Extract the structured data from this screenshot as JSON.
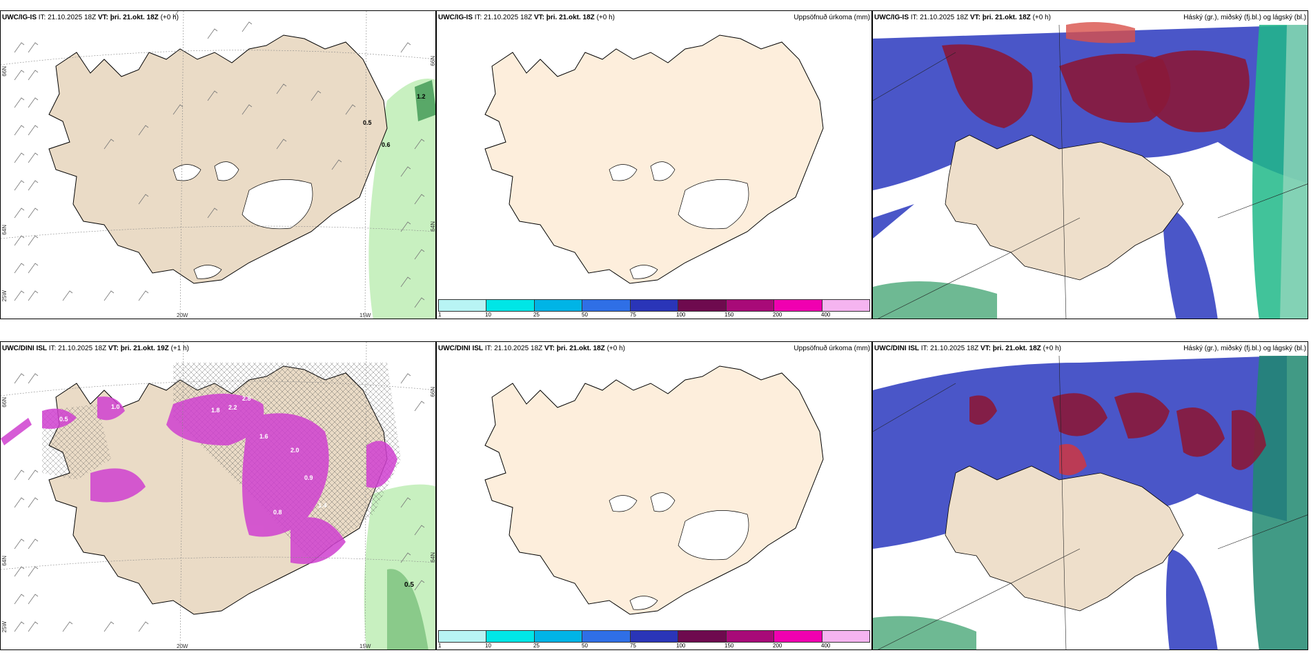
{
  "panels": [
    {
      "model": "UWC/IG-IS",
      "it": "IT: 21.10.2025 18Z",
      "vt_label": "VT:",
      "vt": "þri. 21.okt. 18Z",
      "lead": "(+0 h)",
      "right": ""
    },
    {
      "model": "UWC/IG-IS",
      "it": "IT: 21.10.2025 18Z",
      "vt_label": "VT:",
      "vt": "þri. 21.okt. 18Z",
      "lead": "(+0 h)",
      "right": "Uppsöfnuð úrkoma (mm)"
    },
    {
      "model": "UWC/IG-IS",
      "it": "IT: 21.10.2025 18Z",
      "vt_label": "VT:",
      "vt": "þri. 21.okt. 18Z",
      "lead": "(+0 h)",
      "right": "Háský (gr.), miðský (fj.bl.) og lágský (bl.)"
    },
    {
      "model": "UWC/DINI ISL",
      "it": "IT: 21.10.2025 18Z",
      "vt_label": "VT:",
      "vt": "þri. 21.okt. 19Z",
      "lead": "(+1 h)",
      "right": ""
    },
    {
      "model": "UWC/DINI ISL",
      "it": "IT: 21.10.2025 18Z",
      "vt_label": "VT:",
      "vt": "þri. 21.okt. 18Z",
      "lead": "(+0 h)",
      "right": "Uppsöfnuð úrkoma (mm)"
    },
    {
      "model": "UWC/DINI ISL",
      "it": "IT: 21.10.2025 18Z",
      "vt_label": "VT:",
      "vt": "þri. 21.okt. 18Z",
      "lead": "(+0 h)",
      "right": "Háský (gr.), miðský (fj.bl.) og lágský (bl.)"
    }
  ],
  "grid_labels": {
    "lat66": "66N",
    "lat64": "64N",
    "lon25": "25W",
    "lon20": "20W",
    "lon15": "15W"
  },
  "colorbar": {
    "ticks": [
      "1",
      "10",
      "25",
      "50",
      "75",
      "100",
      "150",
      "200",
      "400"
    ],
    "colors": [
      "#b8f4f4",
      "#00e6e6",
      "#00b4e6",
      "#2f6fe6",
      "#2a35b8",
      "#6e0a4e",
      "#a80a78",
      "#f000b0",
      "#f5b4f0"
    ]
  },
  "colors": {
    "land": "#eedfcb",
    "land_light": "#fdeedc",
    "green": "#c8f0c0",
    "magenta": "#d040d0",
    "cloud_blue": "#4a56c8",
    "cloud_red": "#8a1838",
    "cloud_teal": "#20c090"
  },
  "precip_labels_top": [
    "0.5",
    "0.6",
    "1.2"
  ],
  "precip_labels_bottom": [
    "1.0",
    "0.5",
    "1.8",
    "2.2",
    "2.8",
    "1.6",
    "2.0",
    "0.9",
    "1.4",
    "0.8",
    "0.5"
  ]
}
